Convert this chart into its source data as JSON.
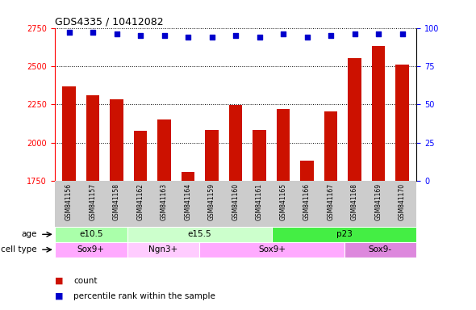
{
  "title": "GDS4335 / 10412082",
  "samples": [
    "GSM841156",
    "GSM841157",
    "GSM841158",
    "GSM841162",
    "GSM841163",
    "GSM841164",
    "GSM841159",
    "GSM841160",
    "GSM841161",
    "GSM841165",
    "GSM841166",
    "GSM841167",
    "GSM841168",
    "GSM841169",
    "GSM841170"
  ],
  "counts": [
    2370,
    2310,
    2285,
    2075,
    2150,
    1810,
    2085,
    2245,
    2080,
    2220,
    1880,
    2205,
    2550,
    2630,
    2510
  ],
  "percentile_ranks": [
    97,
    97,
    96,
    95,
    95,
    94,
    94,
    95,
    94,
    96,
    94,
    95,
    96,
    96,
    96
  ],
  "ylim_left": [
    1750,
    2750
  ],
  "ylim_right": [
    0,
    100
  ],
  "yticks_left": [
    1750,
    2000,
    2250,
    2500,
    2750
  ],
  "yticks_right": [
    0,
    25,
    50,
    75,
    100
  ],
  "bar_color": "#cc1100",
  "dot_color": "#0000cc",
  "age_groups": [
    {
      "label": "e10.5",
      "start": 0,
      "end": 3,
      "color": "#aaffaa"
    },
    {
      "label": "e15.5",
      "start": 3,
      "end": 9,
      "color": "#ccffcc"
    },
    {
      "label": "p23",
      "start": 9,
      "end": 15,
      "color": "#44ee44"
    }
  ],
  "cell_type_groups": [
    {
      "label": "Sox9+",
      "start": 0,
      "end": 3,
      "color": "#ffaaff"
    },
    {
      "label": "Ngn3+",
      "start": 3,
      "end": 6,
      "color": "#ffccff"
    },
    {
      "label": "Sox9+",
      "start": 6,
      "end": 12,
      "color": "#ffaaff"
    },
    {
      "label": "Sox9-",
      "start": 12,
      "end": 15,
      "color": "#dd88dd"
    }
  ],
  "legend_count_label": "count",
  "legend_pct_label": "percentile rank within the sample",
  "bg_color": "#ffffff",
  "tick_area_color": "#cccccc",
  "plot_bg_color": "#ffffff",
  "tick_label_fontsize": 5.5,
  "bar_width": 0.55
}
